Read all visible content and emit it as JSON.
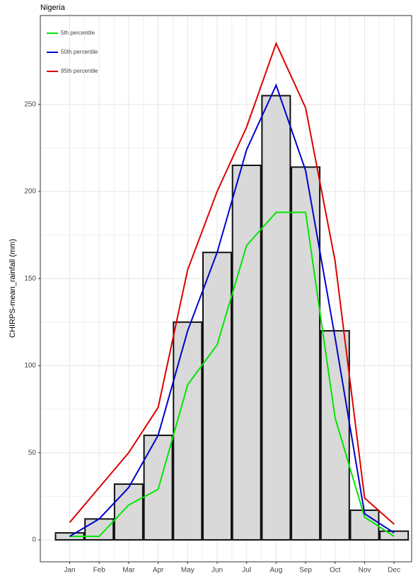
{
  "chart_data": {
    "type": "bar",
    "title": "Nigeria",
    "ylabel": "CHIRPS-mean_rainfall (mm)",
    "categories": [
      "Jan",
      "Feb",
      "Mar",
      "Apr",
      "May",
      "Jun",
      "Jul",
      "Aug",
      "Sep",
      "Oct",
      "Nov",
      "Dec"
    ],
    "values": [
      4,
      12,
      32,
      60,
      125,
      165,
      215,
      255,
      214,
      120,
      17,
      5
    ],
    "color": "#d9d9d9",
    "series": [
      {
        "name": "5th percentile",
        "color": "#00e600",
        "values": [
          2,
          2,
          20,
          29,
          89,
          112,
          169,
          188,
          188,
          70,
          13,
          2
        ]
      },
      {
        "name": "50th percentile",
        "color": "#0000cc",
        "values": [
          2,
          12,
          30,
          60,
          120,
          165,
          224,
          261,
          212,
          116,
          15,
          4
        ]
      },
      {
        "name": "95th percentile",
        "color": "#dd0000",
        "values": [
          10,
          30,
          50,
          76,
          155,
          200,
          237,
          285,
          248,
          160,
          24,
          9
        ]
      }
    ],
    "ylim": [
      -12.6,
      301
    ],
    "yticks": [
      0,
      50,
      100,
      150,
      200,
      250
    ],
    "grid": true,
    "legend": "top-left"
  }
}
